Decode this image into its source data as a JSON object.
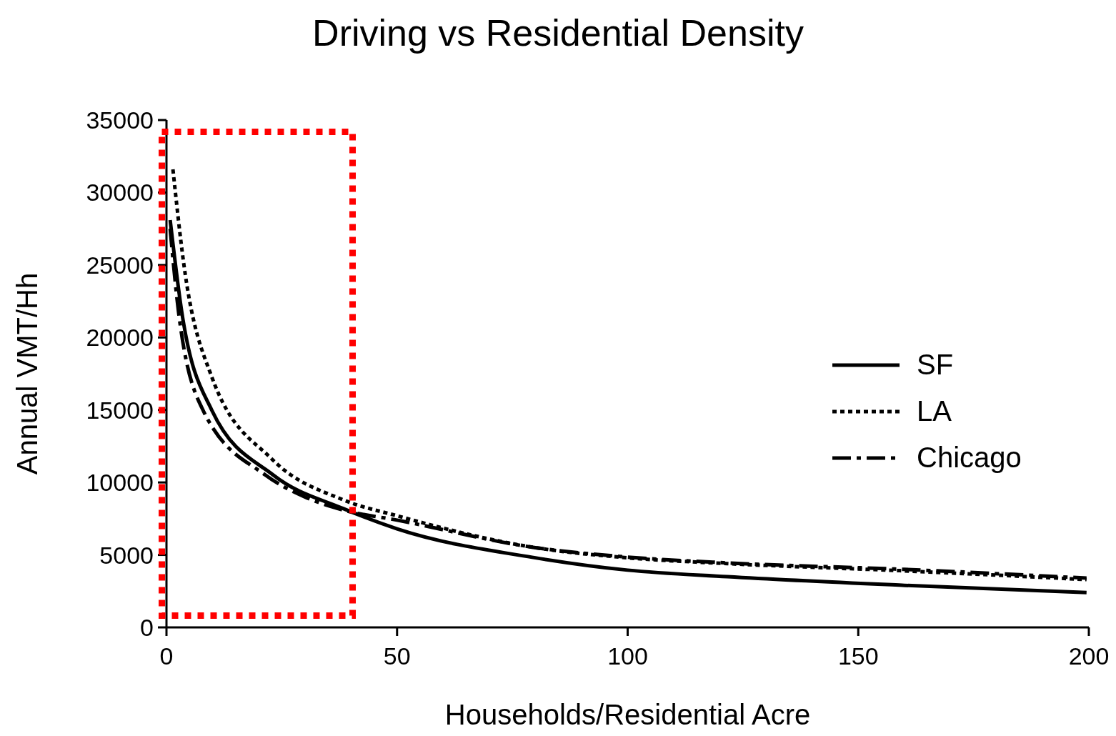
{
  "chart_data": {
    "type": "line",
    "title": "Driving vs Residential Density",
    "xlabel": "Households/Residential Acre",
    "ylabel": "Annual VMT/Hh",
    "xlim": [
      0,
      200
    ],
    "xticks": [
      0,
      50,
      100,
      150,
      200
    ],
    "ylim": [
      0,
      35000
    ],
    "yticks": [
      0,
      5000,
      10000,
      15000,
      20000,
      25000,
      30000,
      35000
    ],
    "grid": false,
    "legend": "right",
    "marker": "none",
    "series": [
      {
        "name": "SF",
        "color": "#000000",
        "line_style": "solid",
        "x": [
          0.8,
          3.3,
          9.8,
          23.2,
          38.3,
          50,
          80,
          100,
          121.6,
          160,
          199.5
        ],
        "values": [
          28100,
          21800,
          15000,
          10500,
          8200,
          6800,
          4800,
          3950,
          3500,
          2900,
          2400
        ]
      },
      {
        "name": "LA",
        "color": "#000000",
        "line_style": "dotted",
        "x": [
          1.4,
          3.7,
          9.8,
          22.9,
          38.3,
          50,
          80,
          100,
          121.6,
          160,
          199.5
        ],
        "values": [
          31600,
          25200,
          17300,
          11600,
          8800,
          7700,
          5500,
          4800,
          4400,
          3900,
          3300
        ]
      },
      {
        "name": "Chicago",
        "color": "#000000",
        "line_style": "dashed",
        "x": [
          0.8,
          2.6,
          7.9,
          21.5,
          30,
          38.3,
          50,
          80,
          100,
          121.6,
          160,
          199.5
        ],
        "values": [
          27500,
          21800,
          15000,
          10500,
          9000,
          8100,
          7400,
          5500,
          4850,
          4450,
          4000,
          3400
        ]
      }
    ]
  }
}
